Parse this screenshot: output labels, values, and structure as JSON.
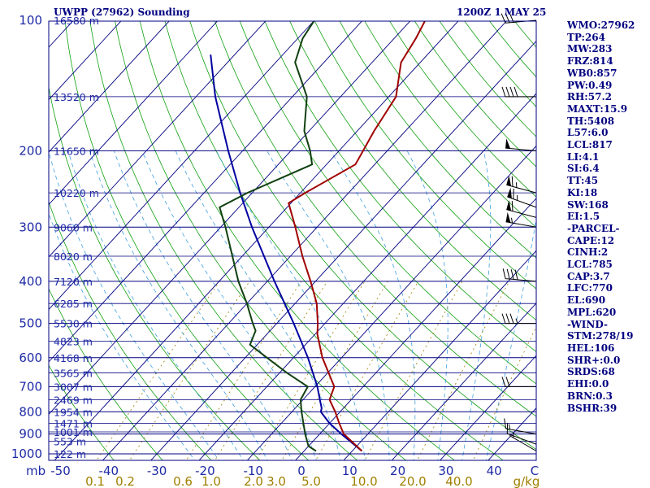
{
  "title_left": "UWPP (27962) Sounding",
  "title_right": "1200Z  1 MAY 25",
  "indices": [
    "WMO:27962",
    "TP:264",
    "MW:283",
    "FRZ:814",
    "WB0:857",
    "PW:0.49",
    "RH:57.2",
    "MAXT:15.9",
    "TH:5408",
    "L57:6.0",
    "LCL:817",
    "LI:4.1",
    "SI:6.4",
    "TT:45",
    "KI:18",
    "SW:168",
    "EI:1.5",
    "-PARCEL-",
    "CAPE:12",
    "CINH:2",
    "LCL:785",
    "CAP:3.7",
    "LFC:770",
    "EL:690",
    "MPL:620",
    "-WIND-",
    "STM:278/19",
    "HEL:106",
    "SHR+:0.0",
    "SRDS:68",
    "EHI:0.0",
    "BRN:0.3",
    "BSHR:39"
  ],
  "colors": {
    "frame": "#000080",
    "isobar": "#000080",
    "isotherm": "#000080",
    "dry_adiabat": "#10a010",
    "moist_adiabat": "#40a0e0",
    "mixing_ratio": "#a08000",
    "temperature": "#a00000",
    "dewpoint": "#104010",
    "parcel": "#0000a0",
    "labels": "#1e2aa6",
    "mixing_label": "#a08000",
    "wind": "#000000"
  },
  "chart_data": {
    "type": "skew-t",
    "pressure_unit": "mb",
    "temperature_unit": "C",
    "mixing_ratio_unit": "g/kg",
    "pressure_range": [
      1000,
      100
    ],
    "pressure_levels": [
      1000,
      900,
      800,
      700,
      600,
      500,
      400,
      300,
      200,
      100
    ],
    "temperature_ticks": [
      "-50",
      "-40",
      "-30",
      "-20",
      "-10",
      "0",
      "10",
      "20",
      "30",
      "40",
      "C"
    ],
    "mixing_ratio_ticks": [
      "0.1",
      "0.2",
      "0.6",
      "1.0",
      "2.0",
      "3.0",
      "5.0",
      "10.0",
      "20.0",
      "40.0",
      "g/kg"
    ],
    "height_labels": [
      {
        "p": 1000,
        "label": "122 m"
      },
      {
        "p": 935,
        "label": "553 m"
      },
      {
        "p": 890,
        "label": "1001 m"
      },
      {
        "p": 850,
        "label": "1471 m"
      },
      {
        "p": 800,
        "label": "1954 m"
      },
      {
        "p": 750,
        "label": "2469 m"
      },
      {
        "p": 700,
        "label": "3007 m"
      },
      {
        "p": 650,
        "label": "3565 m"
      },
      {
        "p": 600,
        "label": "4168 m"
      },
      {
        "p": 550,
        "label": "4823 m"
      },
      {
        "p": 500,
        "label": "5530 m"
      },
      {
        "p": 450,
        "label": "6285 m"
      },
      {
        "p": 400,
        "label": "7120 m"
      },
      {
        "p": 350,
        "label": "8020 m"
      },
      {
        "p": 300,
        "label": "9060 m"
      },
      {
        "p": 250,
        "label": "10220 m"
      },
      {
        "p": 200,
        "label": "11650 m"
      },
      {
        "p": 150,
        "label": "13520 m"
      },
      {
        "p": 100,
        "label": "16580 m"
      }
    ],
    "temperature_profile": [
      {
        "p": 985,
        "t": 12.0
      },
      {
        "p": 900,
        "t": 5.0
      },
      {
        "p": 850,
        "t": 2.0
      },
      {
        "p": 800,
        "t": -1.0
      },
      {
        "p": 750,
        "t": -4.5
      },
      {
        "p": 700,
        "t": -6.0
      },
      {
        "p": 600,
        "t": -14.0
      },
      {
        "p": 530,
        "t": -19.5
      },
      {
        "p": 500,
        "t": -21.5
      },
      {
        "p": 450,
        "t": -25.5
      },
      {
        "p": 400,
        "t": -31.0
      },
      {
        "p": 350,
        "t": -37.5
      },
      {
        "p": 300,
        "t": -44.5
      },
      {
        "p": 264,
        "t": -50.5
      },
      {
        "p": 250,
        "t": -49.0
      },
      {
        "p": 215,
        "t": -44.0
      },
      {
        "p": 200,
        "t": -45.0
      },
      {
        "p": 180,
        "t": -46.5
      },
      {
        "p": 150,
        "t": -48.5
      },
      {
        "p": 125,
        "t": -54.0
      },
      {
        "p": 110,
        "t": -55.5
      },
      {
        "p": 100,
        "t": -57.0
      }
    ],
    "dewpoint_profile": [
      {
        "p": 985,
        "t": 2.5
      },
      {
        "p": 960,
        "t": 0.0
      },
      {
        "p": 900,
        "t": -3.0
      },
      {
        "p": 800,
        "t": -8.0
      },
      {
        "p": 750,
        "t": -10.5
      },
      {
        "p": 700,
        "t": -11.5
      },
      {
        "p": 650,
        "t": -18.5
      },
      {
        "p": 600,
        "t": -25.5
      },
      {
        "p": 560,
        "t": -31.5
      },
      {
        "p": 520,
        "t": -33.0
      },
      {
        "p": 500,
        "t": -35.0
      },
      {
        "p": 450,
        "t": -40.0
      },
      {
        "p": 400,
        "t": -46.0
      },
      {
        "p": 300,
        "t": -59.0
      },
      {
        "p": 270,
        "t": -64.0
      },
      {
        "p": 250,
        "t": -61.0
      },
      {
        "p": 215,
        "t": -53.0
      },
      {
        "p": 200,
        "t": -56.0
      },
      {
        "p": 180,
        "t": -61.0
      },
      {
        "p": 150,
        "t": -67.0
      },
      {
        "p": 125,
        "t": -76.0
      },
      {
        "p": 110,
        "t": -79.0
      },
      {
        "p": 100,
        "t": -80.0
      }
    ],
    "parcel_profile": [
      {
        "p": 985,
        "t": 12.0
      },
      {
        "p": 950,
        "t": 9.0
      },
      {
        "p": 900,
        "t": 4.5
      },
      {
        "p": 850,
        "t": 0.0
      },
      {
        "p": 800,
        "t": -4.0
      },
      {
        "p": 785,
        "t": -4.5
      },
      {
        "p": 750,
        "t": -6.5
      },
      {
        "p": 700,
        "t": -9.5
      },
      {
        "p": 600,
        "t": -17.0
      },
      {
        "p": 500,
        "t": -26.5
      },
      {
        "p": 400,
        "t": -38.5
      },
      {
        "p": 300,
        "t": -53.5
      },
      {
        "p": 250,
        "t": -62.5
      },
      {
        "p": 200,
        "t": -73.0
      },
      {
        "p": 150,
        "t": -86.0
      },
      {
        "p": 120,
        "t": -95.0
      }
    ],
    "winds": [
      {
        "p": 985,
        "dir": 300,
        "spd": 5
      },
      {
        "p": 950,
        "dir": 290,
        "spd": 10
      },
      {
        "p": 900,
        "dir": 280,
        "spd": 15
      },
      {
        "p": 700,
        "dir": 270,
        "spd": 20
      },
      {
        "p": 500,
        "dir": 270,
        "spd": 35
      },
      {
        "p": 400,
        "dir": 275,
        "spd": 40
      },
      {
        "p": 300,
        "dir": 280,
        "spd": 55
      },
      {
        "p": 285,
        "dir": 285,
        "spd": 60
      },
      {
        "p": 270,
        "dir": 290,
        "spd": 65
      },
      {
        "p": 250,
        "dir": 285,
        "spd": 65
      },
      {
        "p": 200,
        "dir": 275,
        "spd": 50
      },
      {
        "p": 150,
        "dir": 270,
        "spd": 40
      },
      {
        "p": 100,
        "dir": 265,
        "spd": 30
      }
    ]
  }
}
